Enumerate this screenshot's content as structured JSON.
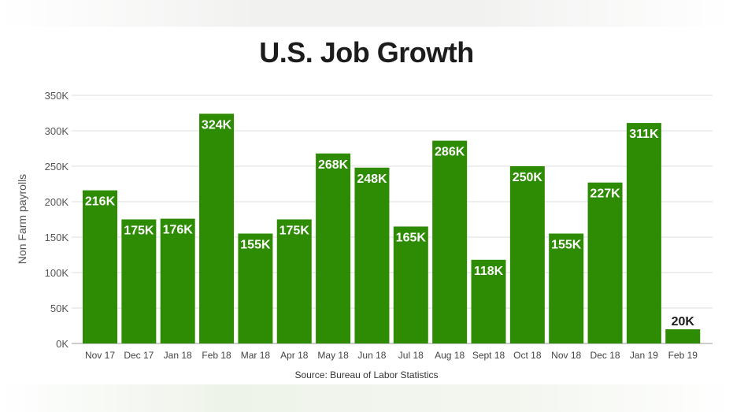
{
  "chart_data": {
    "type": "bar",
    "title": "U.S. Job Growth",
    "ylabel": "Non Farm payrolls",
    "xlabel": "",
    "source": "Source: Bureau of Labor Statistics",
    "categories": [
      "Nov 17",
      "Dec 17",
      "Jan 18",
      "Feb 18",
      "Mar 18",
      "Apr 18",
      "May 18",
      "Jun 18",
      "Jul 18",
      "Aug 18",
      "Sept 18",
      "Oct 18",
      "Nov 18",
      "Dec 18",
      "Jan 19",
      "Feb 19"
    ],
    "values": [
      216,
      175,
      176,
      324,
      155,
      175,
      268,
      248,
      165,
      286,
      118,
      250,
      155,
      227,
      311,
      20
    ],
    "data_labels": [
      "216K",
      "175K",
      "176K",
      "324K",
      "155K",
      "175K",
      "268K",
      "248K",
      "165K",
      "286K",
      "118K",
      "250K",
      "155K",
      "227K",
      "311K",
      "20K"
    ],
    "yticks": [
      0,
      50,
      100,
      150,
      200,
      250,
      300,
      350
    ],
    "ytick_labels": [
      "0K",
      "50K",
      "100K",
      "150K",
      "200K",
      "250K",
      "300K",
      "350K"
    ],
    "ylim": [
      0,
      350
    ],
    "unit": "thousands",
    "grid": true,
    "legend": "none",
    "colors": {
      "bar": "#2e8b04",
      "grid": "#dddddd",
      "axis": "#999999",
      "label_inside": "#ffffff",
      "label_outside": "#1c1c1c"
    }
  }
}
